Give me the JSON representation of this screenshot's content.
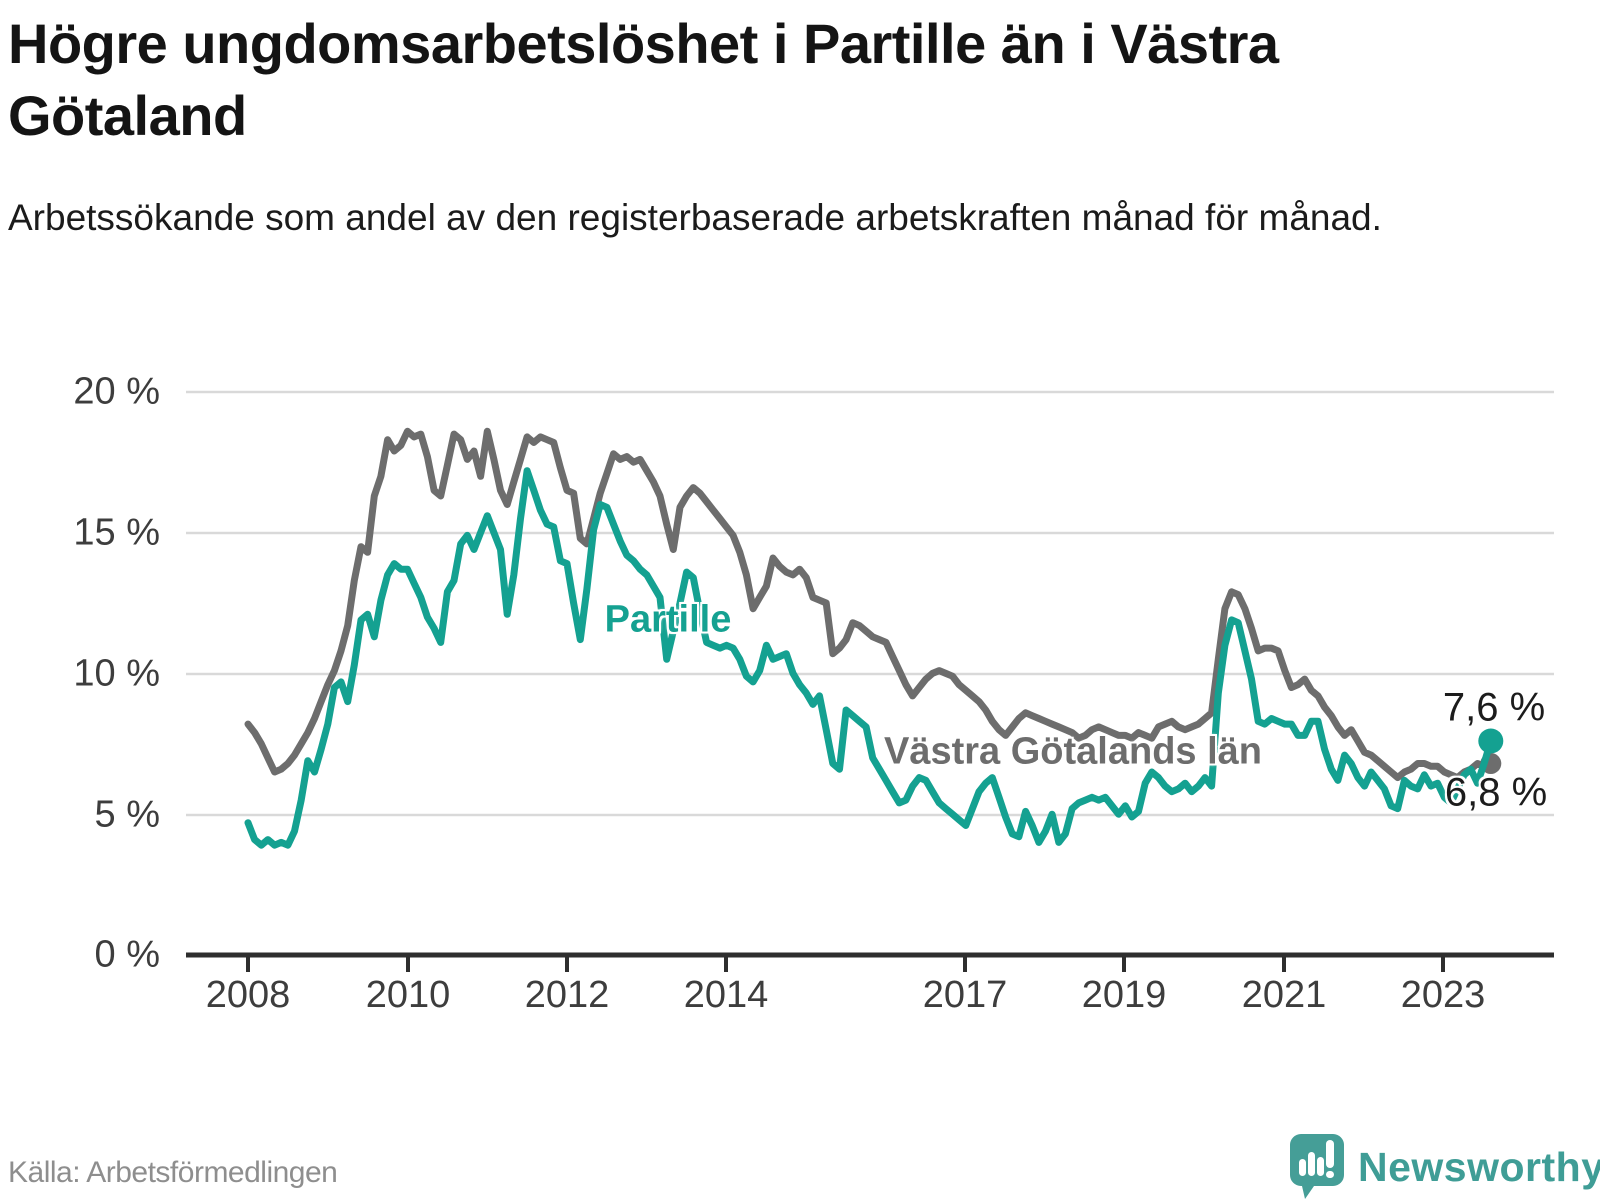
{
  "header": {
    "title": "Högre ungdomsarbetslöshet i Partille än i Västra Götaland",
    "subtitle": "Arbetssökande som andel av den registerbaserade arbetskraften månad för månad."
  },
  "footer": {
    "source": "Källa: Arbetsförmedlingen",
    "brand": "Newsworthy"
  },
  "colors": {
    "partille": "#14a191",
    "vastra_gotaland": "#6d6d6d",
    "axis": "#2e2e2e",
    "grid": "#d9d9d9",
    "axis_text": "#3d3d3d",
    "brand_teal": "#459e97"
  },
  "chart_data": {
    "type": "line",
    "title": "Högre ungdomsarbetslöshet i Partille än i Västra Götaland",
    "subtitle": "Arbetssökande som andel av den registerbaserade arbetskraften månad för månad.",
    "x_unit": "month",
    "x_start": "2008-01",
    "x_end": "2023-08",
    "ylim": [
      0,
      20
    ],
    "grid": "horizontal",
    "legend_position": "inline-labels",
    "y_ticks": [
      "20 %",
      "15 %",
      "10 %",
      "5 %",
      "0 %"
    ],
    "x_ticks": [
      "2008",
      "2010",
      "2012",
      "2014",
      "2017",
      "2019",
      "2021",
      "2023"
    ],
    "series": [
      {
        "name": "Västra Götalands län",
        "color": "#6d6d6d",
        "end_label": "6,8 %",
        "end_value": 6.8,
        "values": [
          8.2,
          7.9,
          7.5,
          7.0,
          6.5,
          6.6,
          6.8,
          7.1,
          7.5,
          7.9,
          8.4,
          9.0,
          9.6,
          10.1,
          10.8,
          11.7,
          13.3,
          14.5,
          14.3,
          16.3,
          17.0,
          18.3,
          17.9,
          18.1,
          18.6,
          18.4,
          18.5,
          17.7,
          16.5,
          16.3,
          17.4,
          18.5,
          18.3,
          17.6,
          17.9,
          17.0,
          18.6,
          17.6,
          16.5,
          16.0,
          16.8,
          17.6,
          18.4,
          18.2,
          18.4,
          18.3,
          18.2,
          17.3,
          16.5,
          16.4,
          14.8,
          14.6,
          15.5,
          16.4,
          17.1,
          17.8,
          17.6,
          17.7,
          17.5,
          17.6,
          17.2,
          16.8,
          16.3,
          15.3,
          14.4,
          15.9,
          16.3,
          16.6,
          16.4,
          16.1,
          15.8,
          15.5,
          15.2,
          14.9,
          14.3,
          13.5,
          12.3,
          12.7,
          13.1,
          14.1,
          13.8,
          13.6,
          13.5,
          13.7,
          13.4,
          12.7,
          12.6,
          12.5,
          10.7,
          10.9,
          11.2,
          11.8,
          11.7,
          11.5,
          11.3,
          11.2,
          11.1,
          10.6,
          10.1,
          9.6,
          9.2,
          9.5,
          9.8,
          10.0,
          10.1,
          10.0,
          9.9,
          9.6,
          9.4,
          9.2,
          9.0,
          8.7,
          8.3,
          8.0,
          7.8,
          8.1,
          8.4,
          8.6,
          8.5,
          8.4,
          8.3,
          8.2,
          8.1,
          8.0,
          7.9,
          7.7,
          7.8,
          8.0,
          8.1,
          8.0,
          7.9,
          7.8,
          7.8,
          7.7,
          7.9,
          7.8,
          7.7,
          8.1,
          8.2,
          8.3,
          8.1,
          8.0,
          8.1,
          8.2,
          8.4,
          8.6,
          10.5,
          12.3,
          12.9,
          12.8,
          12.3,
          11.6,
          10.8,
          10.9,
          10.9,
          10.8,
          10.1,
          9.5,
          9.6,
          9.8,
          9.4,
          9.2,
          8.8,
          8.5,
          8.1,
          7.8,
          8.0,
          7.6,
          7.2,
          7.1,
          6.9,
          6.7,
          6.5,
          6.3,
          6.5,
          6.6,
          6.8,
          6.8,
          6.7,
          6.7,
          6.5,
          6.4,
          6.3,
          6.5,
          6.6,
          6.8,
          6.7,
          6.8
        ]
      },
      {
        "name": "Partille",
        "color": "#14a191",
        "end_label": "7,6 %",
        "end_value": 7.6,
        "values": [
          4.7,
          4.1,
          3.9,
          4.1,
          3.9,
          4.0,
          3.9,
          4.4,
          5.5,
          6.9,
          6.5,
          7.3,
          8.2,
          9.5,
          9.7,
          9.0,
          10.3,
          11.9,
          12.1,
          11.3,
          12.6,
          13.5,
          13.9,
          13.7,
          13.7,
          13.2,
          12.7,
          12.0,
          11.6,
          11.1,
          12.9,
          13.3,
          14.6,
          14.9,
          14.4,
          15.0,
          15.6,
          15.0,
          14.4,
          12.1,
          13.5,
          15.5,
          17.2,
          16.5,
          15.8,
          15.3,
          15.2,
          14.0,
          13.9,
          12.5,
          11.2,
          13.0,
          15.1,
          16.0,
          15.9,
          15.3,
          14.7,
          14.2,
          14.0,
          13.7,
          13.5,
          13.1,
          12.7,
          10.5,
          11.5,
          12.5,
          13.6,
          13.4,
          12.2,
          11.1,
          11.0,
          10.9,
          11.0,
          10.9,
          10.5,
          9.9,
          9.7,
          10.1,
          11.0,
          10.5,
          10.6,
          10.7,
          10.0,
          9.6,
          9.3,
          8.9,
          9.2,
          8.0,
          6.8,
          6.6,
          8.7,
          8.5,
          8.3,
          8.1,
          7.0,
          6.6,
          6.2,
          5.8,
          5.4,
          5.5,
          6.0,
          6.3,
          6.2,
          5.8,
          5.4,
          5.2,
          5.0,
          4.8,
          4.6,
          5.2,
          5.8,
          6.1,
          6.3,
          5.6,
          4.9,
          4.3,
          4.2,
          5.1,
          4.6,
          4.0,
          4.4,
          5.0,
          4.0,
          4.3,
          5.2,
          5.4,
          5.5,
          5.6,
          5.5,
          5.6,
          5.3,
          5.0,
          5.3,
          4.9,
          5.1,
          6.1,
          6.5,
          6.3,
          6.0,
          5.8,
          5.9,
          6.1,
          5.8,
          6.0,
          6.3,
          6.0,
          9.3,
          11.0,
          11.9,
          11.8,
          10.8,
          9.8,
          8.3,
          8.2,
          8.4,
          8.3,
          8.2,
          8.2,
          7.8,
          7.8,
          8.3,
          8.3,
          7.3,
          6.6,
          6.2,
          7.1,
          6.8,
          6.3,
          6.0,
          6.5,
          6.2,
          5.9,
          5.3,
          5.2,
          6.2,
          6.0,
          5.9,
          6.4,
          6.0,
          6.1,
          5.6,
          5.4,
          5.9,
          6.4,
          6.6,
          6.1,
          6.8,
          7.6
        ]
      }
    ]
  }
}
